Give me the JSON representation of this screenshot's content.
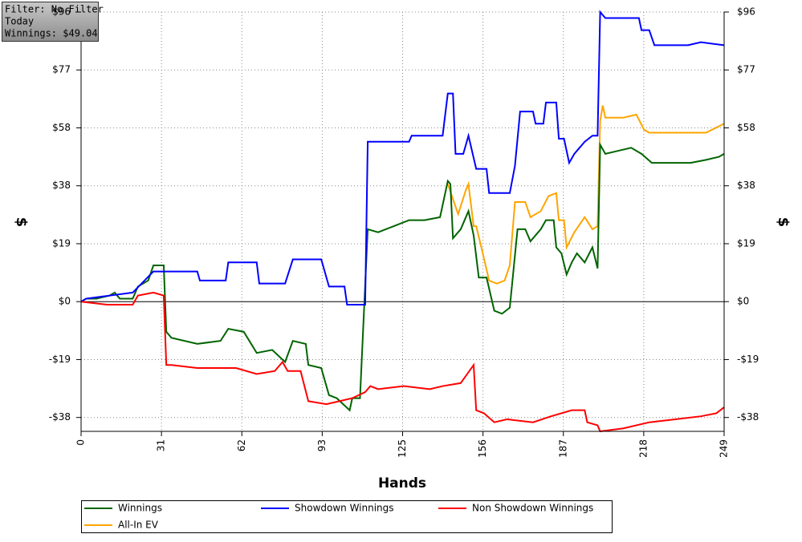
{
  "chart_data": {
    "type": "line",
    "x_label": "Hands",
    "y_label": "$",
    "annotations": [
      "Filter: No Filter",
      "Today",
      "Winnings: $49.04"
    ],
    "xlim": [
      0,
      249
    ],
    "ylim": [
      -43,
      96
    ],
    "xticks": [
      0,
      {
        "value": 31.125,
        "label": "31"
      },
      {
        "value": 62.25,
        "label": "62"
      },
      {
        "value": 93.375,
        "label": "93"
      },
      {
        "value": 124.5,
        "label": "125"
      },
      {
        "value": 155.625,
        "label": "156"
      },
      {
        "value": 186.75,
        "label": "187"
      },
      {
        "value": 217.875,
        "label": "218"
      },
      249
    ],
    "yticks": [
      {
        "value": -38.4,
        "label": "-$38"
      },
      {
        "value": -19.2,
        "label": "-$19"
      },
      {
        "value": 0,
        "label": "$0"
      },
      {
        "value": 19.2,
        "label": "$19"
      },
      {
        "value": 38.4,
        "label": "$38"
      },
      {
        "value": 57.6,
        "label": "$58"
      },
      {
        "value": 76.8,
        "label": "$77"
      },
      {
        "value": 96,
        "label": "$96"
      }
    ],
    "grid": true,
    "series": [
      {
        "name": "Winnings",
        "color": "#006400",
        "x": [
          0,
          2,
          6,
          11,
          13,
          15,
          20,
          22,
          26,
          28,
          32,
          33,
          35,
          45,
          54,
          57,
          63,
          68,
          74,
          79,
          82,
          87,
          88,
          93,
          96,
          99,
          104,
          105,
          108,
          111,
          115,
          121,
          127,
          133,
          139,
          142,
          143,
          144,
          147,
          150,
          152,
          154,
          157,
          160,
          163,
          166,
          169,
          172,
          174,
          178,
          180,
          183,
          184,
          186,
          188,
          190,
          192,
          195,
          198,
          200,
          201,
          203,
          208,
          213,
          217,
          221,
          228,
          236,
          242,
          247,
          249
        ],
        "values": [
          0,
          1,
          1,
          2,
          3,
          1,
          1,
          5,
          7,
          12,
          12,
          -10,
          -12,
          -14,
          -13,
          -9,
          -10,
          -17,
          -16,
          -20,
          -13,
          -14,
          -21,
          -22,
          -31,
          -32,
          -36,
          -32,
          -32,
          24,
          23,
          25,
          27,
          27,
          28,
          40,
          39,
          21,
          24,
          30,
          22,
          8,
          8,
          -3,
          -4,
          -2,
          24,
          24,
          20,
          24,
          27,
          27,
          18,
          16,
          9,
          13,
          16,
          13,
          18,
          11,
          52,
          49,
          50,
          51,
          49,
          46,
          46,
          46,
          47,
          48,
          49
        ]
      },
      {
        "name": "Showdown Winnings",
        "color": "#0000ff",
        "x": [
          0,
          2,
          11,
          20,
          28,
          45,
          46,
          56,
          57,
          68,
          69,
          79,
          82,
          93,
          96,
          102,
          103,
          110,
          111,
          127,
          128,
          140,
          142,
          144,
          145,
          148,
          150,
          153,
          157,
          158,
          166,
          168,
          170,
          175,
          176,
          179,
          180,
          184,
          185,
          187,
          189,
          191,
          195,
          198,
          200,
          201,
          203,
          216,
          217,
          220,
          222,
          235,
          240,
          249
        ],
        "values": [
          0,
          1,
          2,
          3,
          10,
          10,
          7,
          7,
          13,
          13,
          6,
          6,
          14,
          14,
          5,
          5,
          -1,
          -1,
          53,
          53,
          55,
          55,
          69,
          69,
          49,
          49,
          55,
          44,
          44,
          36,
          36,
          45,
          63,
          63,
          59,
          59,
          66,
          66,
          54,
          54,
          46,
          49,
          53,
          55,
          55,
          96,
          94,
          94,
          90,
          90,
          85,
          85,
          86,
          85
        ]
      },
      {
        "name": "Non Showdown Winnings",
        "color": "#ff0000",
        "x": [
          0,
          10,
          20,
          22,
          28,
          32,
          33,
          35,
          45,
          60,
          68,
          75,
          78,
          80,
          85,
          88,
          95,
          100,
          105,
          110,
          112,
          115,
          125,
          135,
          140,
          147,
          152,
          153,
          156,
          160,
          165,
          175,
          182,
          190,
          195,
          196,
          200,
          201,
          210,
          220,
          230,
          240,
          246,
          249
        ],
        "values": [
          0,
          -1,
          -1,
          2,
          3,
          2,
          -21,
          -21,
          -22,
          -22,
          -24,
          -23,
          -20,
          -23,
          -23,
          -33,
          -34,
          -33,
          -32,
          -30,
          -28,
          -29,
          -28,
          -29,
          -28,
          -27,
          -21,
          -36,
          -37,
          -40,
          -39,
          -40,
          -38,
          -36,
          -36,
          -40,
          -41,
          -43,
          -42,
          -40,
          -39,
          -38,
          -37,
          -35
        ]
      },
      {
        "name": "All-In EV",
        "color": "#ffa500",
        "x": [
          142,
          146,
          149,
          150,
          151,
          152,
          153,
          155,
          158,
          161,
          164,
          166,
          168,
          172,
          174,
          178,
          181,
          184,
          185,
          187,
          188,
          191,
          195,
          198,
          200,
          201,
          202,
          203,
          210,
          215,
          218,
          220,
          228,
          235,
          242,
          249
        ],
        "values": [
          39,
          29,
          37,
          39,
          32,
          25,
          25,
          18,
          7,
          6,
          7,
          12,
          33,
          33,
          28,
          30,
          35,
          36,
          27,
          27,
          18,
          23,
          28,
          24,
          25,
          60,
          65,
          61,
          61,
          62,
          57,
          56,
          56,
          56,
          56,
          59
        ]
      }
    ]
  }
}
